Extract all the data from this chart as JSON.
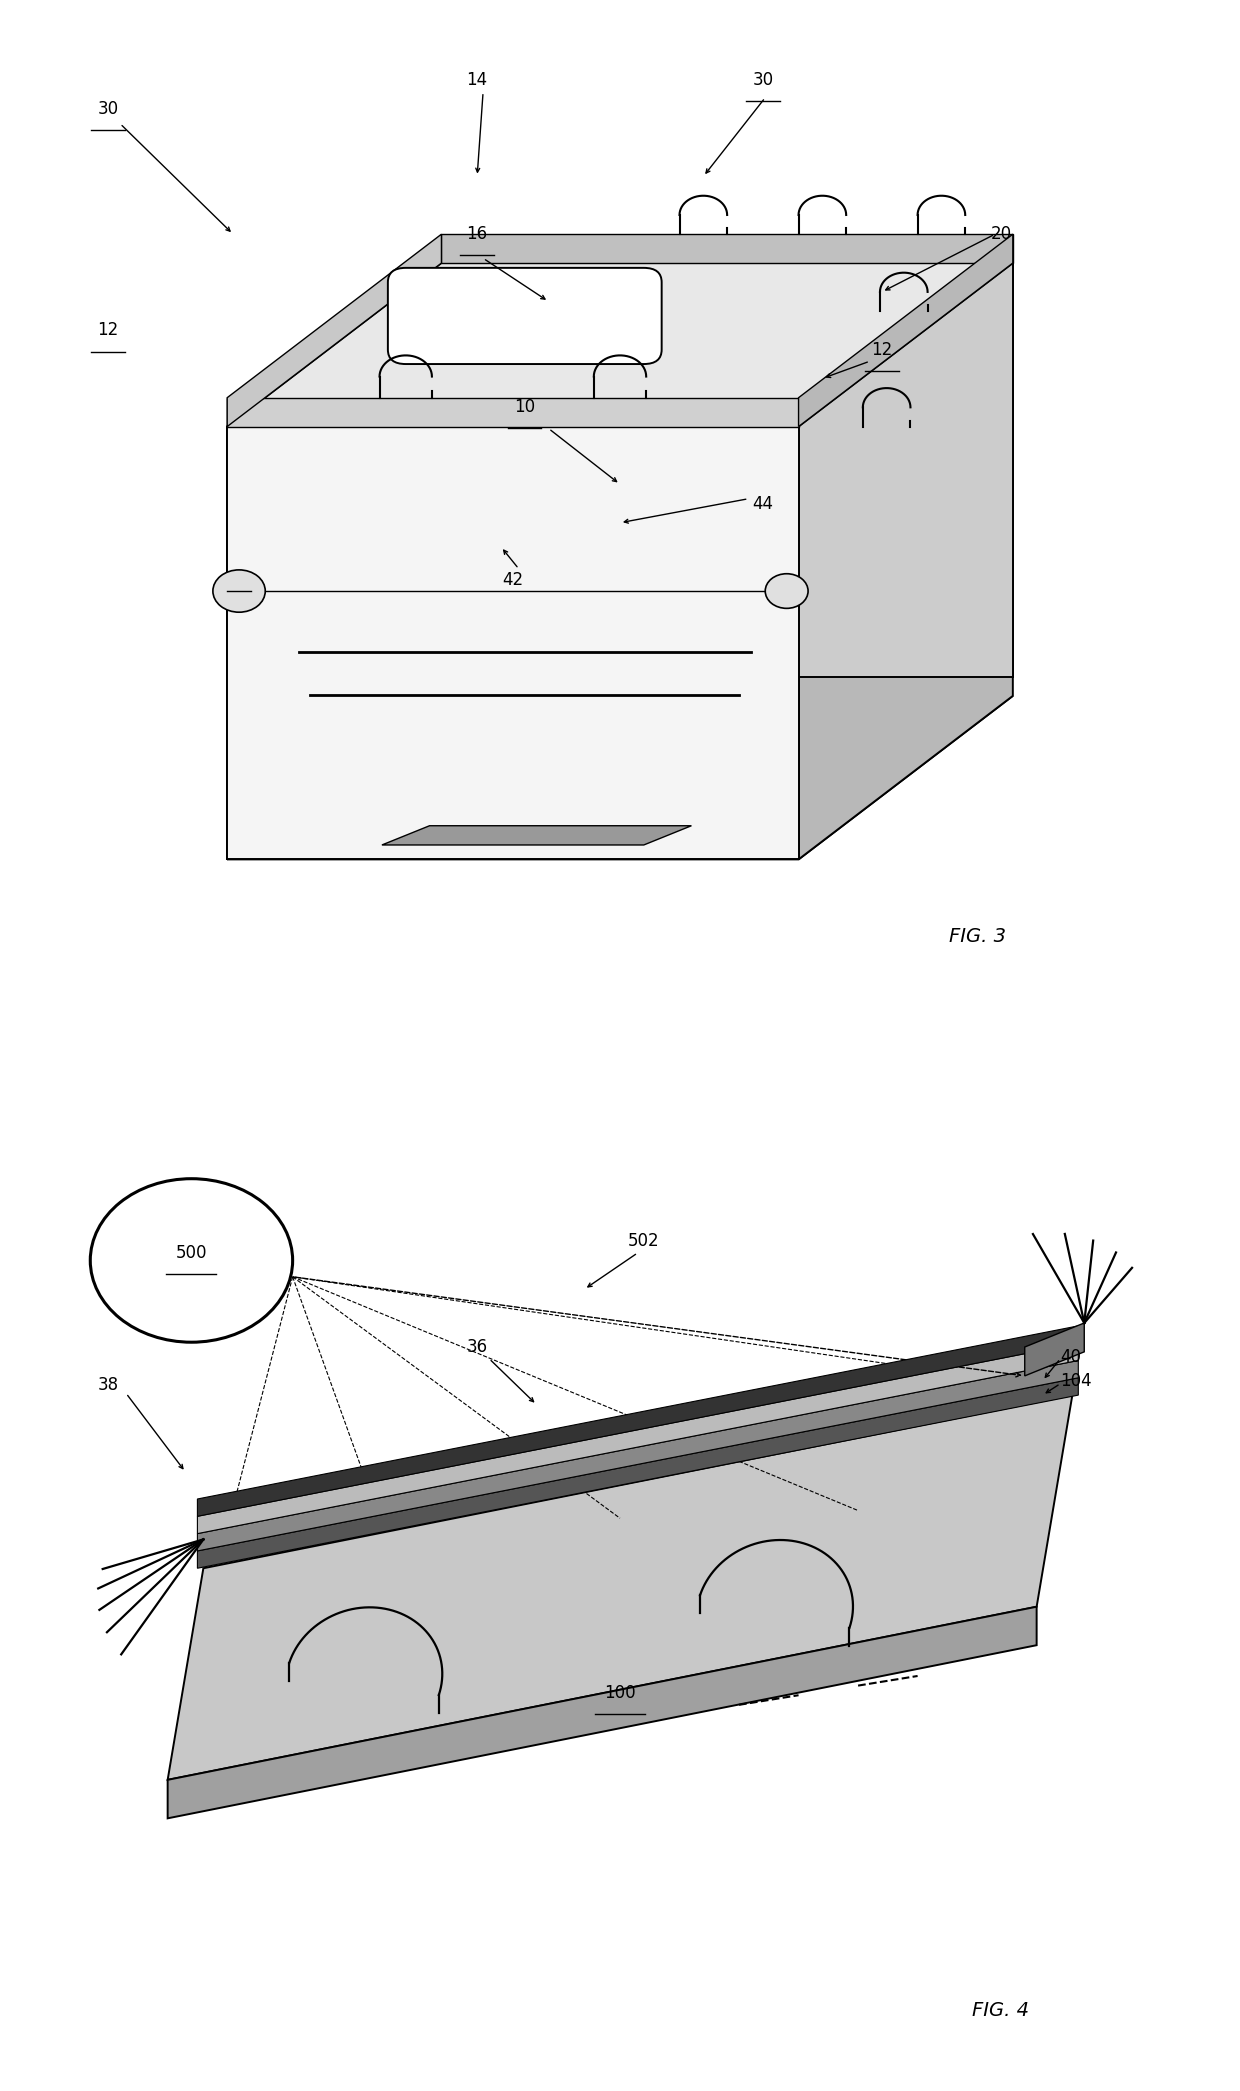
{
  "fig_width": 12.4,
  "fig_height": 20.91,
  "bg": "#ffffff",
  "lc": "#000000",
  "fig3_label": "FIG. 3",
  "fig4_label": "FIG. 4"
}
